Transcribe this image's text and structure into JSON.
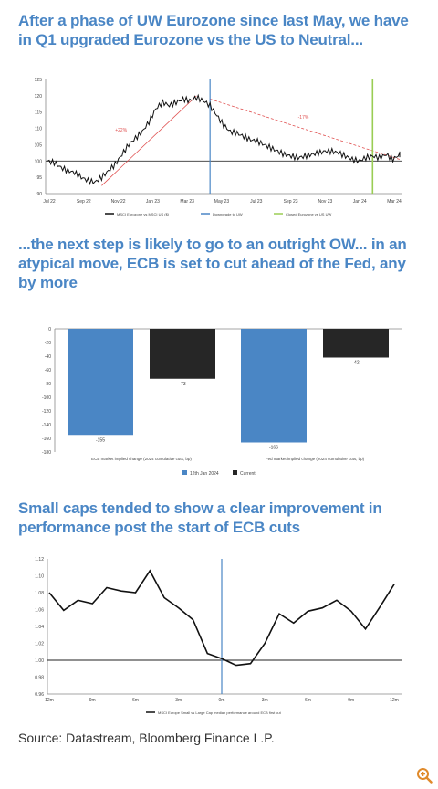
{
  "headings": {
    "h1": "After a phase of UW Eurozone since last May, we have in Q1 upgraded Eurozone vs the US to Neutral...",
    "h2": "...the next step is likely to go to an outright OW... in an atypical move, ECB is set to cut ahead of the Fed, any by more",
    "h3": "Small caps tended to show a clear improvement in performance post the start of ECB cuts"
  },
  "source": "Source: Datastream, Bloomberg Finance L.P.",
  "zoom_icon": "zoom-in-icon",
  "colors": {
    "heading": "#4a86c5",
    "blue": "#4a86c5",
    "dark": "#262626",
    "red": "#e05050",
    "green": "#9acd54"
  },
  "chart_data": [
    {
      "type": "line",
      "x_labels": [
        "Jul 22",
        "Sep 22",
        "Nov 22",
        "Jan 23",
        "Mar 23",
        "May 23",
        "Jul 23",
        "Sep 23",
        "Nov 23",
        "Jan 24",
        "Mar 24"
      ],
      "y_ticks": [
        "90",
        "95",
        "100",
        "105",
        "110",
        "115",
        "120",
        "125"
      ],
      "ylim": [
        90,
        125
      ],
      "series": [
        {
          "name": "MSCI Eurozone vs MSCI US ($)",
          "values": [
            100,
            99.5,
            98,
            97,
            96.5,
            95,
            94,
            93.5,
            95,
            97,
            99,
            102,
            105,
            107,
            109,
            112,
            116,
            118,
            117,
            118,
            119,
            118.5,
            119.5,
            118.5,
            117,
            114,
            111,
            109,
            108.5,
            107.5,
            106.5,
            106,
            105,
            104,
            103,
            102,
            101.5,
            101,
            101.5,
            102,
            102.5,
            103,
            103,
            102.5,
            101.5,
            100.5,
            100,
            101,
            101.5,
            101,
            102,
            100.5,
            102
          ]
        }
      ],
      "annotations": [
        "+22%",
        "-17%"
      ],
      "vlines_legend": [
        "Downgrade to UW",
        "Closed Eurozone vs US UW"
      ],
      "hline": 100
    },
    {
      "type": "bar",
      "categories": [
        "ECB market implied change (2024 cumulative cuts, bp)",
        "Fed market implied change (2024 cumulative cuts, bp)"
      ],
      "series": [
        {
          "name": "12th Jan 2024",
          "values": [
            -155,
            -166
          ]
        },
        {
          "name": "Current",
          "values": [
            -73,
            -42
          ]
        }
      ],
      "data_labels": [
        "-155",
        "-73",
        "-166",
        "-42"
      ],
      "y_ticks": [
        "0",
        "-20",
        "-40",
        "-60",
        "-80",
        "-100",
        "-120",
        "-140",
        "-160",
        "-180"
      ],
      "ylim": [
        -180,
        0
      ]
    },
    {
      "type": "line",
      "x_labels": [
        "12m",
        "9m",
        "6m",
        "3m",
        "0m",
        "3m",
        "6m",
        "9m",
        "12m"
      ],
      "y_ticks": [
        "0.96",
        "0.98",
        "1.00",
        "1.02",
        "1.04",
        "1.06",
        "1.08",
        "1.10",
        "1.12"
      ],
      "ylim": [
        0.96,
        1.12
      ],
      "series": [
        {
          "name": "MSCI Europe Small vs Large Cap median performance around ECB first cut",
          "values": [
            1.08,
            1.059,
            1.071,
            1.067,
            1.086,
            1.082,
            1.08,
            1.106,
            1.074,
            1.062,
            1.048,
            1.008,
            1.002,
            0.994,
            0.996,
            1.02,
            1.055,
            1.044,
            1.058,
            1.062,
            1.071,
            1.058,
            1.037,
            1.063,
            1.09
          ]
        }
      ],
      "hline": 1.0
    }
  ]
}
